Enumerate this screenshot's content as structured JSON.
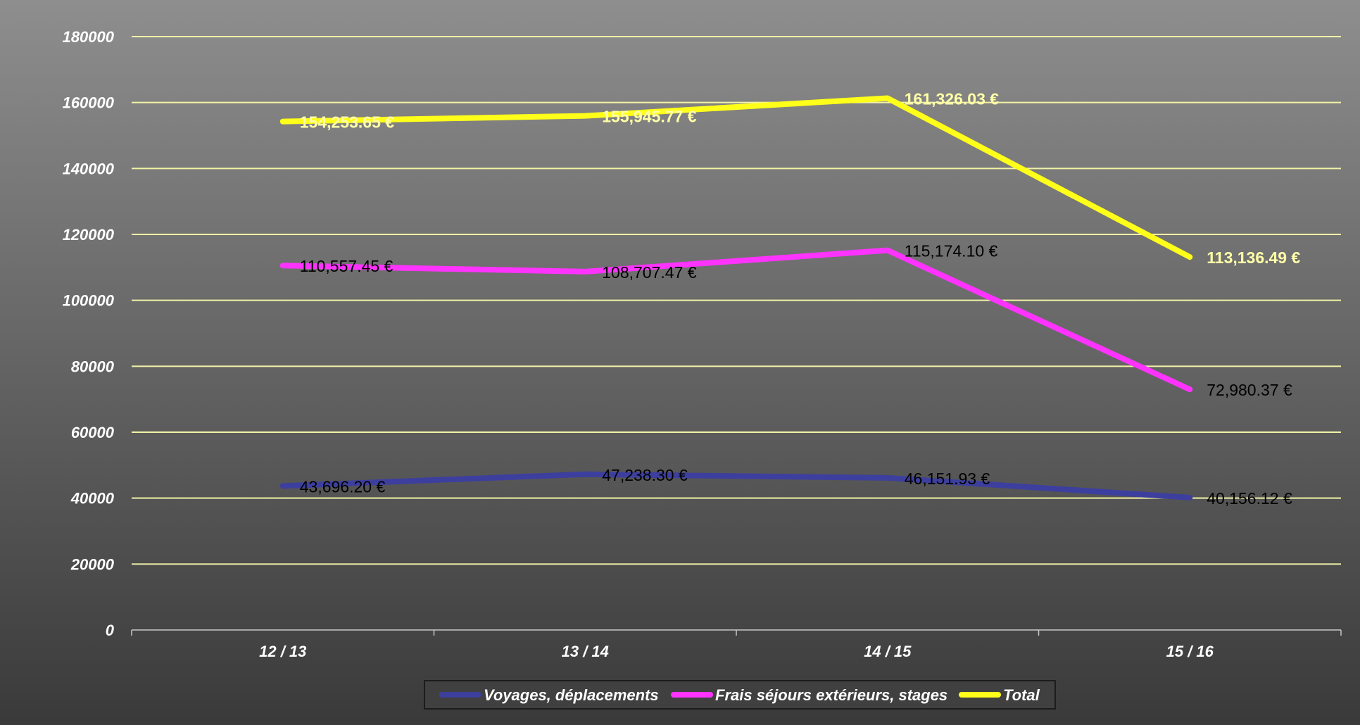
{
  "chart_data": {
    "type": "line",
    "categories": [
      "12 / 13",
      "13 / 14",
      "14 / 15",
      "15 / 16"
    ],
    "ylim": [
      0,
      180000
    ],
    "yticks": [
      0,
      20000,
      40000,
      60000,
      80000,
      100000,
      120000,
      140000,
      160000,
      180000
    ],
    "grid": true,
    "legend_position": "bottom",
    "series": [
      {
        "name": "Voyages, déplacements",
        "color": "#3d3f9e",
        "values": [
          43696.2,
          47238.3,
          46151.93,
          40156.12
        ],
        "labels": [
          "43,696.20 €",
          "47,238.30 €",
          "46,151.93 €",
          "40,156.12 €"
        ]
      },
      {
        "name": "Frais séjours extérieurs, stages",
        "color": "#ff33ff",
        "values": [
          110557.45,
          108707.47,
          115174.1,
          72980.37
        ],
        "labels": [
          "110,557.45 €",
          "108,707.47 €",
          "115,174.10 €",
          "72,980.37 €"
        ]
      },
      {
        "name": "Total",
        "color": "#ffff1a",
        "values": [
          154253.65,
          155945.77,
          161326.03,
          113136.49
        ],
        "labels": [
          "154,253.65 €",
          "155,945.77 €",
          "161,326.03 €",
          "113,136.49 €"
        ]
      }
    ]
  }
}
